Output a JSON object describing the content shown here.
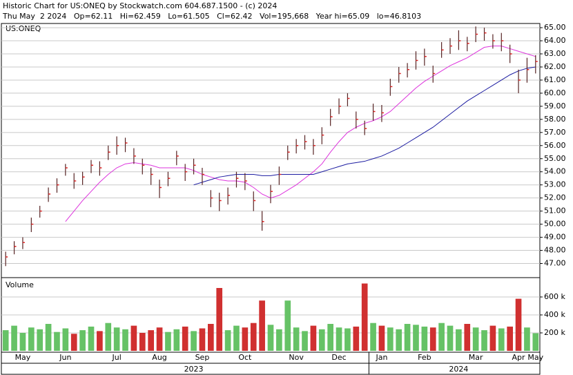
{
  "header": {
    "line1": "Historic Chart for US:ONEQ by Stockwatch.com 604.687.1500 - (c) 2024",
    "line2": "Thu May  2 2024   Op=62.11   Hi=62.459   Lo=61.505   Cl=62.42   Vol=195,668   Year hi=65.09   lo=46.8103"
  },
  "chart_data": [
    {
      "type": "ohlc",
      "label": "US:ONEQ",
      "bar_color": "#552222",
      "close_color": "#dd2222",
      "categories": [
        null,
        null,
        null,
        null,
        null,
        null,
        null,
        null,
        null,
        null,
        null,
        null,
        null,
        null,
        null,
        null,
        null,
        null,
        null,
        null,
        null,
        null,
        null,
        null,
        null,
        null,
        null,
        null,
        null,
        null,
        null,
        null,
        null,
        null,
        null,
        null,
        null,
        null,
        null,
        null,
        null,
        null,
        null,
        null,
        null,
        null,
        null,
        null,
        null,
        null,
        null,
        null,
        null,
        null,
        null,
        null,
        null,
        null,
        null,
        null,
        null,
        null,
        null
      ],
      "high": [
        47.9,
        48.7,
        49.0,
        50.5,
        51.4,
        52.8,
        53.5,
        54.6,
        53.9,
        54.0,
        54.9,
        54.8,
        56.0,
        56.7,
        56.6,
        55.8,
        55.0,
        54.3,
        53.4,
        54.0,
        55.6,
        54.6,
        55.0,
        54.3,
        52.6,
        52.4,
        52.8,
        54.0,
        53.9,
        52.5,
        51.0,
        53.0,
        54.4,
        56.0,
        56.5,
        56.8,
        56.5,
        57.4,
        58.8,
        59.6,
        60.0,
        58.6,
        57.9,
        59.2,
        59.1,
        61.1,
        62.0,
        62.3,
        63.2,
        63.4,
        62.1,
        63.9,
        64.2,
        64.8,
        64.3,
        65.09,
        65.0,
        64.5,
        64.6,
        63.7,
        61.8,
        62.7,
        62.9
      ],
      "low": [
        46.8,
        47.7,
        48.1,
        49.4,
        50.5,
        51.7,
        52.4,
        53.7,
        52.7,
        53.0,
        53.9,
        53.7,
        54.9,
        55.3,
        55.5,
        54.6,
        53.8,
        53.0,
        52.0,
        52.9,
        54.5,
        53.3,
        53.8,
        53.0,
        51.3,
        51.0,
        51.5,
        52.8,
        52.6,
        51.0,
        49.5,
        51.6,
        53.0,
        54.9,
        55.4,
        55.7,
        55.3,
        56.1,
        57.5,
        58.4,
        59.0,
        57.3,
        56.8,
        57.9,
        57.8,
        59.8,
        60.8,
        61.2,
        61.8,
        62.1,
        60.8,
        62.7,
        63.0,
        63.3,
        63.2,
        63.9,
        64.0,
        63.4,
        63.2,
        62.3,
        60.0,
        60.8,
        61.505
      ],
      "close": [
        47.5,
        48.3,
        48.6,
        50.0,
        51.0,
        52.3,
        53.0,
        54.3,
        53.3,
        53.6,
        54.5,
        54.3,
        55.5,
        56.0,
        56.2,
        55.2,
        54.5,
        53.8,
        52.8,
        53.5,
        55.2,
        54.0,
        54.5,
        53.8,
        52.0,
        51.8,
        52.2,
        53.5,
        53.3,
        51.8,
        50.2,
        52.5,
        53.8,
        55.5,
        56.0,
        56.3,
        56.0,
        56.8,
        58.2,
        59.0,
        59.6,
        58.0,
        57.3,
        58.6,
        58.5,
        60.5,
        61.5,
        61.8,
        62.5,
        62.8,
        61.5,
        63.3,
        63.6,
        64.0,
        63.8,
        64.5,
        64.6,
        64.0,
        64.0,
        63.0,
        61.0,
        61.8,
        62.42
      ],
      "series": [
        {
          "color": "#dd33dd",
          "values": [
            null,
            null,
            null,
            null,
            null,
            null,
            null,
            50.2,
            51.0,
            51.8,
            52.5,
            53.2,
            53.8,
            54.3,
            54.6,
            54.7,
            54.6,
            54.5,
            54.3,
            54.3,
            54.3,
            54.3,
            54.1,
            53.8,
            53.6,
            53.4,
            53.3,
            53.3,
            53.2,
            52.8,
            52.3,
            52.0,
            52.2,
            52.6,
            53.0,
            53.5,
            54.0,
            54.6,
            55.5,
            56.3,
            57.0,
            57.4,
            57.7,
            57.9,
            58.2,
            58.6,
            59.2,
            59.8,
            60.4,
            60.9,
            61.3,
            61.7,
            62.1,
            62.4,
            62.7,
            63.1,
            63.5,
            63.6,
            63.6,
            63.4,
            63.2,
            63.0,
            62.8
          ]
        },
        {
          "color": "#1a1aa0",
          "values": [
            null,
            null,
            null,
            null,
            null,
            null,
            null,
            null,
            null,
            null,
            null,
            null,
            null,
            null,
            null,
            null,
            null,
            null,
            null,
            null,
            null,
            null,
            53.0,
            53.2,
            53.4,
            53.6,
            53.7,
            53.8,
            53.8,
            53.8,
            53.7,
            53.7,
            53.8,
            53.8,
            53.8,
            53.8,
            53.8,
            54.0,
            54.2,
            54.4,
            54.6,
            54.7,
            54.8,
            55.0,
            55.2,
            55.5,
            55.8,
            56.2,
            56.6,
            57.0,
            57.4,
            57.9,
            58.4,
            58.9,
            59.4,
            59.8,
            60.2,
            60.6,
            61.0,
            61.4,
            61.7,
            61.9,
            62.0
          ]
        }
      ],
      "ylim": [
        45.92,
        65.32
      ],
      "yticks": [
        {
          "value": 47,
          "label": "47.00"
        },
        {
          "value": 48,
          "label": "48.00"
        },
        {
          "value": 49,
          "label": "49.00"
        },
        {
          "value": 50,
          "label": "50.00"
        },
        {
          "value": 51,
          "label": "51.00"
        },
        {
          "value": 52,
          "label": "52.00"
        },
        {
          "value": 53,
          "label": "53.00"
        },
        {
          "value": 54,
          "label": "54.00"
        },
        {
          "value": 55,
          "label": "55.00"
        },
        {
          "value": 56,
          "label": "56.00"
        },
        {
          "value": 57,
          "label": "57.00"
        },
        {
          "value": 58,
          "label": "58.00"
        },
        {
          "value": 59,
          "label": "59.00"
        },
        {
          "value": 60,
          "label": "60.00"
        },
        {
          "value": 61,
          "label": "61.00"
        },
        {
          "value": 62,
          "label": "62.00"
        },
        {
          "value": 63,
          "label": "63.00"
        },
        {
          "value": 64,
          "label": "64.00"
        },
        {
          "value": 65,
          "label": "65.00"
        }
      ],
      "xticks": [
        {
          "value": 2,
          "label": "May"
        },
        {
          "value": 7,
          "label": "Jun"
        },
        {
          "value": 13,
          "label": "Jul"
        },
        {
          "value": 18,
          "label": "Aug"
        },
        {
          "value": 23,
          "label": "Sep"
        },
        {
          "value": 28,
          "label": "Oct"
        },
        {
          "value": 34,
          "label": "Nov"
        },
        {
          "value": 39,
          "label": "Dec"
        },
        {
          "value": 44,
          "label": "Jan"
        },
        {
          "value": 49,
          "label": "Feb"
        },
        {
          "value": 55,
          "label": "Mar"
        },
        {
          "value": 60,
          "label": "Apr"
        },
        {
          "value": 62,
          "label": "May"
        }
      ],
      "years": [
        {
          "value": 22,
          "label": "2023"
        },
        {
          "value": 53,
          "label": "2024"
        }
      ],
      "year_break": 42.5
    },
    {
      "type": "volume",
      "label": "Volume",
      "up_color": "#66c266",
      "down_color": "#d03030",
      "values": [
        230,
        280,
        200,
        260,
        240,
        300,
        210,
        250,
        190,
        230,
        270,
        220,
        310,
        260,
        240,
        280,
        200,
        230,
        260,
        210,
        240,
        270,
        220,
        250,
        300,
        700,
        230,
        280,
        260,
        310,
        560,
        290,
        240,
        560,
        260,
        220,
        280,
        240,
        300,
        260,
        250,
        270,
        750,
        310,
        280,
        260,
        240,
        300,
        290,
        270,
        260,
        310,
        280,
        240,
        300,
        260,
        230,
        280,
        250,
        270,
        580,
        260,
        196
      ],
      "ylim": [
        0,
        800
      ],
      "yticks": [
        {
          "value": 200,
          "label": "200 k"
        },
        {
          "value": 400,
          "label": "400 k"
        },
        {
          "value": 600,
          "label": "600 k"
        }
      ]
    }
  ]
}
